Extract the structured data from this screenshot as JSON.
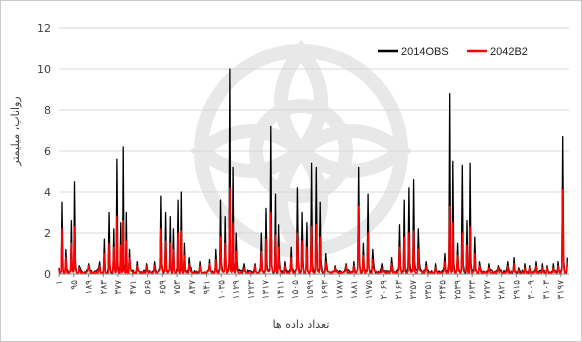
{
  "chart_data": {
    "type": "line",
    "title": "",
    "xlabel": "تعداد داده ها",
    "ylabel": "رواناب، میلیمتر",
    "ylim": [
      0,
      12
    ],
    "yticks": [
      0,
      2,
      4,
      6,
      8,
      10,
      12
    ],
    "grid": "horizontal",
    "legend_position": "top-right",
    "x_tick_labels": [
      "۱",
      "۹۵",
      "۱۸۹",
      "۲۸۳",
      "۳۷۷",
      "۴۷۱",
      "۵۶۵",
      "۶۵۹",
      "۷۵۳",
      "۸۴۷",
      "۹۴۱",
      "۱۰۳۵",
      "۱۱۲۹",
      "۱۲۲۳",
      "۱۳۱۷",
      "۱۴۱۱",
      "۱۵۰۵",
      "۱۵۹۹",
      "۱۶۹۳",
      "۱۷۸۷",
      "۱۸۸۱",
      "۱۹۷۵",
      "۲۰۶۹",
      "۲۱۶۳",
      "۲۲۵۷",
      "۲۳۵۱",
      "۲۴۴۵",
      "۲۵۳۹",
      "۲۶۳۳",
      "۲۷۲۷",
      "۲۸۲۱",
      "۲۹۱۵",
      "۳۰۰۹",
      "۳۱۰۳",
      "۳۱۹۷"
    ],
    "x_range": [
      1,
      3250
    ],
    "series": [
      {
        "name": "2014OBS",
        "color": "#000000",
        "peaks": [
          [
            1,
            0.3
          ],
          [
            20,
            3.5
          ],
          [
            45,
            1.2
          ],
          [
            80,
            2.6
          ],
          [
            100,
            4.5
          ],
          [
            130,
            0.4
          ],
          [
            190,
            0.5
          ],
          [
            260,
            0.6
          ],
          [
            290,
            1.7
          ],
          [
            320,
            3.0
          ],
          [
            350,
            2.2
          ],
          [
            370,
            5.6
          ],
          [
            395,
            2.5
          ],
          [
            410,
            6.2
          ],
          [
            430,
            3.0
          ],
          [
            450,
            1.2
          ],
          [
            500,
            0.6
          ],
          [
            560,
            0.5
          ],
          [
            610,
            0.6
          ],
          [
            650,
            3.8
          ],
          [
            680,
            3.0
          ],
          [
            710,
            2.8
          ],
          [
            730,
            2.2
          ],
          [
            760,
            3.6
          ],
          [
            780,
            4.0
          ],
          [
            800,
            1.5
          ],
          [
            830,
            0.8
          ],
          [
            900,
            0.6
          ],
          [
            960,
            0.7
          ],
          [
            1000,
            1.2
          ],
          [
            1030,
            3.6
          ],
          [
            1060,
            2.8
          ],
          [
            1090,
            10.0
          ],
          [
            1110,
            5.2
          ],
          [
            1130,
            2.0
          ],
          [
            1180,
            0.5
          ],
          [
            1250,
            0.5
          ],
          [
            1290,
            2.0
          ],
          [
            1320,
            3.2
          ],
          [
            1350,
            7.2
          ],
          [
            1380,
            3.9
          ],
          [
            1400,
            2.4
          ],
          [
            1440,
            0.6
          ],
          [
            1480,
            1.3
          ],
          [
            1520,
            4.2
          ],
          [
            1550,
            3.0
          ],
          [
            1580,
            2.5
          ],
          [
            1610,
            5.4
          ],
          [
            1640,
            5.2
          ],
          [
            1665,
            3.5
          ],
          [
            1700,
            1.0
          ],
          [
            1760,
            0.4
          ],
          [
            1830,
            0.5
          ],
          [
            1880,
            0.6
          ],
          [
            1910,
            5.2
          ],
          [
            1940,
            1.5
          ],
          [
            1970,
            3.9
          ],
          [
            2000,
            1.2
          ],
          [
            2060,
            0.5
          ],
          [
            2120,
            0.8
          ],
          [
            2170,
            2.4
          ],
          [
            2200,
            3.6
          ],
          [
            2230,
            4.2
          ],
          [
            2260,
            4.6
          ],
          [
            2290,
            2.2
          ],
          [
            2340,
            0.6
          ],
          [
            2400,
            0.5
          ],
          [
            2460,
            1.0
          ],
          [
            2490,
            8.8
          ],
          [
            2510,
            5.5
          ],
          [
            2540,
            1.5
          ],
          [
            2570,
            5.3
          ],
          [
            2600,
            2.6
          ],
          [
            2620,
            5.4
          ],
          [
            2650,
            1.8
          ],
          [
            2680,
            0.6
          ],
          [
            2740,
            0.5
          ],
          [
            2800,
            0.4
          ],
          [
            2860,
            0.6
          ],
          [
            2900,
            0.8
          ],
          [
            2930,
            0.3
          ],
          [
            2970,
            0.5
          ],
          [
            3000,
            0.4
          ],
          [
            3040,
            0.6
          ],
          [
            3080,
            0.5
          ],
          [
            3110,
            0.4
          ],
          [
            3150,
            0.5
          ],
          [
            3180,
            0.6
          ],
          [
            3210,
            6.7
          ],
          [
            3240,
            0.8
          ]
        ]
      },
      {
        "name": "2042B2",
        "color": "#ff0000",
        "peaks": [
          [
            1,
            0.2
          ],
          [
            20,
            2.2
          ],
          [
            45,
            0.8
          ],
          [
            80,
            1.5
          ],
          [
            100,
            2.3
          ],
          [
            130,
            0.3
          ],
          [
            190,
            0.4
          ],
          [
            260,
            0.4
          ],
          [
            290,
            1.0
          ],
          [
            320,
            1.5
          ],
          [
            350,
            1.3
          ],
          [
            370,
            2.8
          ],
          [
            395,
            1.4
          ],
          [
            410,
            2.6
          ],
          [
            430,
            1.6
          ],
          [
            450,
            0.8
          ],
          [
            500,
            0.4
          ],
          [
            560,
            0.4
          ],
          [
            610,
            0.4
          ],
          [
            650,
            2.2
          ],
          [
            680,
            1.6
          ],
          [
            710,
            1.5
          ],
          [
            730,
            1.2
          ],
          [
            760,
            2.0
          ],
          [
            780,
            2.1
          ],
          [
            800,
            0.9
          ],
          [
            830,
            0.5
          ],
          [
            900,
            0.4
          ],
          [
            960,
            0.5
          ],
          [
            1000,
            0.7
          ],
          [
            1030,
            1.8
          ],
          [
            1060,
            1.5
          ],
          [
            1090,
            4.2
          ],
          [
            1110,
            2.5
          ],
          [
            1130,
            1.1
          ],
          [
            1180,
            0.3
          ],
          [
            1250,
            0.4
          ],
          [
            1290,
            1.1
          ],
          [
            1320,
            1.7
          ],
          [
            1350,
            3.0
          ],
          [
            1380,
            1.9
          ],
          [
            1400,
            1.3
          ],
          [
            1440,
            0.4
          ],
          [
            1480,
            0.8
          ],
          [
            1520,
            2.0
          ],
          [
            1550,
            1.6
          ],
          [
            1580,
            1.3
          ],
          [
            1610,
            2.3
          ],
          [
            1640,
            2.4
          ],
          [
            1665,
            1.8
          ],
          [
            1700,
            0.6
          ],
          [
            1760,
            0.3
          ],
          [
            1830,
            0.4
          ],
          [
            1880,
            0.4
          ],
          [
            1910,
            3.3
          ],
          [
            1940,
            0.9
          ],
          [
            1970,
            2.0
          ],
          [
            2000,
            0.7
          ],
          [
            2060,
            0.3
          ],
          [
            2120,
            0.5
          ],
          [
            2170,
            1.3
          ],
          [
            2200,
            1.8
          ],
          [
            2230,
            2.0
          ],
          [
            2260,
            2.1
          ],
          [
            2290,
            1.2
          ],
          [
            2340,
            0.4
          ],
          [
            2400,
            0.3
          ],
          [
            2460,
            0.6
          ],
          [
            2490,
            3.3
          ],
          [
            2510,
            2.5
          ],
          [
            2540,
            0.9
          ],
          [
            2570,
            2.0
          ],
          [
            2600,
            1.4
          ],
          [
            2620,
            2.3
          ],
          [
            2650,
            1.0
          ],
          [
            2680,
            0.4
          ],
          [
            2740,
            0.3
          ],
          [
            2800,
            0.3
          ],
          [
            2860,
            0.4
          ],
          [
            2900,
            0.5
          ],
          [
            2930,
            0.2
          ],
          [
            2970,
            0.3
          ],
          [
            3000,
            0.3
          ],
          [
            3040,
            0.4
          ],
          [
            3080,
            0.3
          ],
          [
            3110,
            0.3
          ],
          [
            3150,
            0.3
          ],
          [
            3180,
            0.4
          ],
          [
            3210,
            4.1
          ],
          [
            3240,
            0.5
          ]
        ]
      }
    ]
  }
}
